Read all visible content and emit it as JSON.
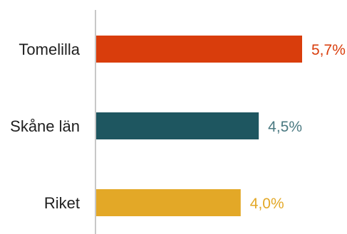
{
  "chart_data": {
    "type": "bar",
    "orientation": "horizontal",
    "categories": [
      "Tomelilla",
      "Skåne län",
      "Riket"
    ],
    "values": [
      5.7,
      4.5,
      4.0
    ],
    "value_labels": [
      "5,7%",
      "4,5%",
      "4,0%"
    ],
    "colors": [
      "#D93D0C",
      "#1E5660",
      "#E3A827"
    ],
    "label_colors": [
      "#D93D0C",
      "#4B7A82",
      "#E3A827"
    ],
    "xlim": [
      0,
      6.5
    ],
    "grid": false,
    "legend": "none"
  }
}
